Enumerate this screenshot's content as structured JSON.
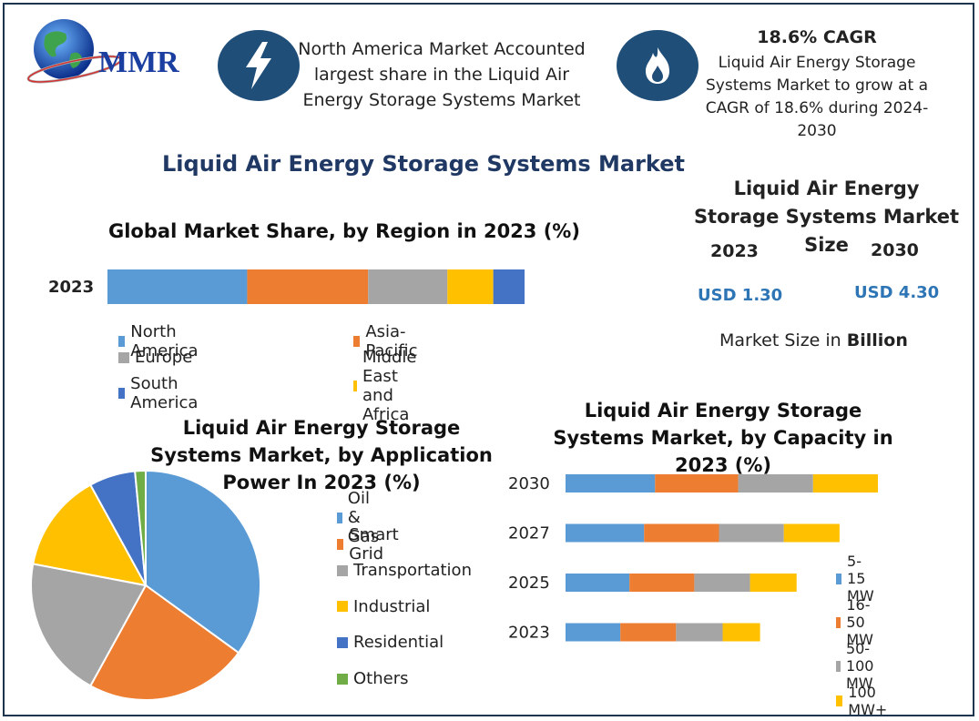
{
  "logo": {
    "text": "MMR"
  },
  "header": {
    "north_america_text": "North America Market Accounted largest share in the Liquid Air Energy Storage Systems Market",
    "cagr_title": "18.6% CAGR",
    "cagr_text": "Liquid Air Energy Storage Systems Market to grow at a CAGR of 18.6% during 2024-2030"
  },
  "main_title": "Liquid Air Energy Storage Systems Market",
  "market_size": {
    "title": "Liquid Air Energy Storage Systems Market Size",
    "year_2023": "2023",
    "year_2030": "2030",
    "value_2023": "USD 1.30",
    "value_2030": "USD 4.30",
    "note_prefix": "Market Size in ",
    "note_bold": "Billion"
  },
  "colors": {
    "blue": "#5b9bd5",
    "orange": "#ed7d31",
    "gray": "#a5a5a5",
    "yellow": "#ffc000",
    "darkblue": "#4472c4",
    "green": "#70ad47",
    "icon_bg": "#1f4e79",
    "title_navy": "#1f3864"
  },
  "chart_data": [
    {
      "type": "bar",
      "orientation": "horizontal-stacked",
      "title": "Global Market Share, by Region in 2023 (%)",
      "categories": [
        "2023"
      ],
      "series": [
        {
          "name": "North America",
          "values": [
            33.5
          ]
        },
        {
          "name": "Asia-Pacific",
          "values": [
            29
          ]
        },
        {
          "name": "Europe",
          "values": [
            19
          ]
        },
        {
          "name": "Middle East and Africa",
          "values": [
            11
          ]
        },
        {
          "name": "South America",
          "values": [
            7.5
          ]
        }
      ],
      "legend": "bottom"
    },
    {
      "type": "pie",
      "title": "Liquid Air Energy Storage Systems Market, by Application Power In 2023 (%)",
      "labels": [
        "Oil & Gas",
        "Smart Grid",
        "Transportation",
        "Industrial",
        "Residential",
        "Others"
      ],
      "values": [
        35,
        23,
        20,
        14,
        6.5,
        1.5
      ],
      "legend": "right"
    },
    {
      "type": "bar",
      "orientation": "horizontal-stacked",
      "title": "Liquid Air Energy Storage Systems Market, by Capacity in 2023 (%)",
      "categories": [
        "2030",
        "2027",
        "2025",
        "2023"
      ],
      "series": [
        {
          "name": "5-15 MW",
          "values": [
            98,
            86,
            70,
            60
          ]
        },
        {
          "name": "16-50 MW",
          "values": [
            91,
            82,
            71,
            61
          ]
        },
        {
          "name": "50-100 MW",
          "values": [
            82,
            71,
            61,
            51
          ]
        },
        {
          "name": "100 MW+",
          "values": [
            71,
            61,
            51,
            41
          ]
        }
      ],
      "legend": "right"
    }
  ]
}
